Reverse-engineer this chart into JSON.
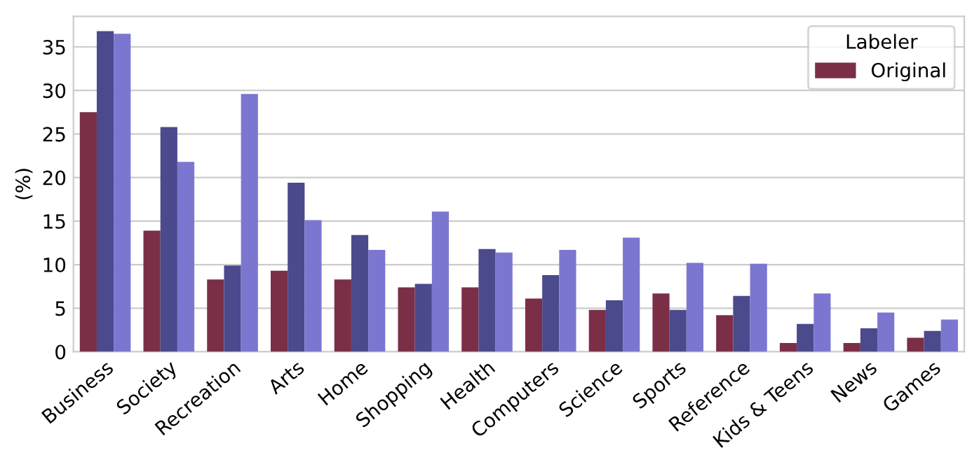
{
  "chart_data": {
    "type": "bar",
    "ylabel": "(%)",
    "legend_title": "Labeler",
    "legend": "top right",
    "grid": "y",
    "categories": [
      "Business",
      "Society",
      "Recreation",
      "Arts",
      "Home",
      "Shopping",
      "Health",
      "Computers",
      "Science",
      "Sports",
      "Reference",
      "Kids & Teens",
      "News",
      "Games"
    ],
    "series": [
      {
        "name": "Original",
        "color": "#7a2f47",
        "values": [
          27.5,
          13.9,
          8.3,
          9.3,
          8.3,
          7.4,
          7.4,
          6.1,
          4.8,
          6.7,
          4.2,
          1.0,
          1.0,
          1.6
        ]
      },
      {
        "color": "#4b4a8c",
        "values": [
          36.8,
          25.8,
          9.9,
          19.4,
          13.4,
          7.8,
          11.8,
          8.8,
          5.9,
          4.8,
          6.4,
          3.2,
          2.7,
          2.4
        ]
      },
      {
        "color": "#7b77d0",
        "values": [
          36.5,
          21.8,
          29.6,
          15.1,
          11.7,
          16.1,
          11.4,
          11.7,
          13.1,
          10.2,
          10.1,
          6.7,
          4.5,
          3.7
        ]
      }
    ],
    "ylim": [
      0,
      38.5
    ],
    "yticks": [
      0,
      5,
      10,
      15,
      20,
      25,
      30,
      35
    ]
  }
}
